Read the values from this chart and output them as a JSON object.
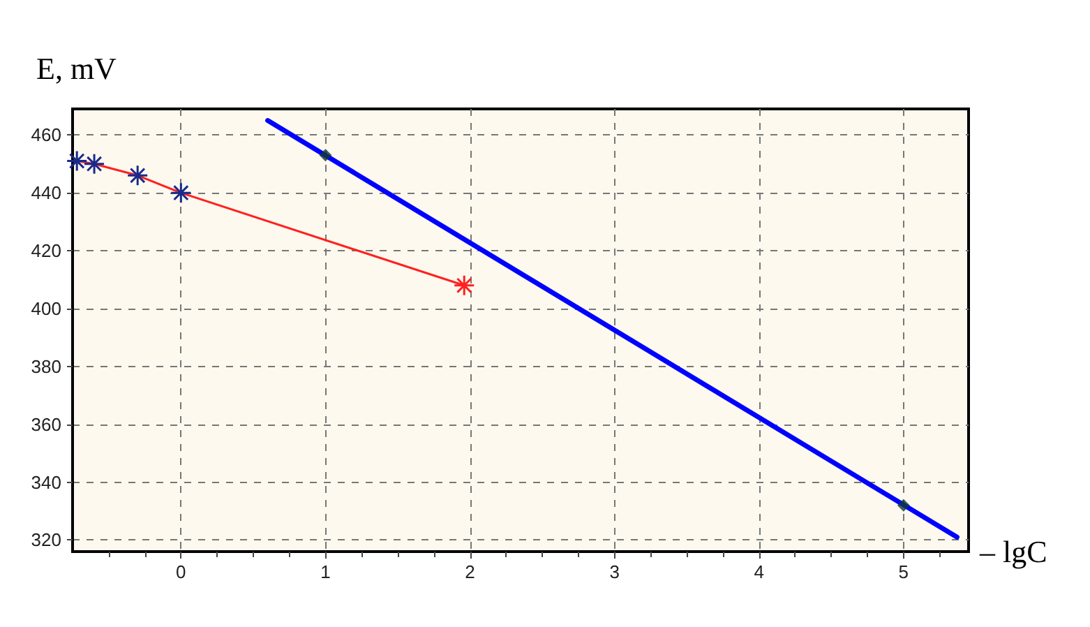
{
  "chart_data": {
    "type": "line",
    "xlabel": "– lgC",
    "ylabel": "E, mV",
    "xlim": [
      -0.75,
      5.45
    ],
    "xticks": [
      0,
      1,
      2,
      3,
      4,
      5
    ],
    "ylim": [
      316,
      469
    ],
    "yticks": [
      320,
      340,
      360,
      380,
      400,
      420,
      440,
      460
    ],
    "grid": true,
    "line_style": "solid",
    "series": [
      {
        "color": "#ff2020",
        "marker": "cross",
        "colors": [
          "#1a2a8a",
          "#1a2a8a",
          "#1a2a8a",
          "#1a2a8a",
          "#ff2020"
        ],
        "x": [
          -0.72,
          -0.6,
          -0.3,
          0,
          1.96
        ],
        "values": [
          451,
          450,
          446,
          440,
          408
        ]
      },
      {
        "color": "#0000ff",
        "marker": "none",
        "x": [
          0.6,
          5.37
        ],
        "values": [
          465,
          321
        ]
      },
      {
        "type": "scatter",
        "color": "#123838",
        "marker": "diamond",
        "x": [
          1,
          5
        ],
        "values": [
          453,
          332
        ]
      }
    ]
  }
}
